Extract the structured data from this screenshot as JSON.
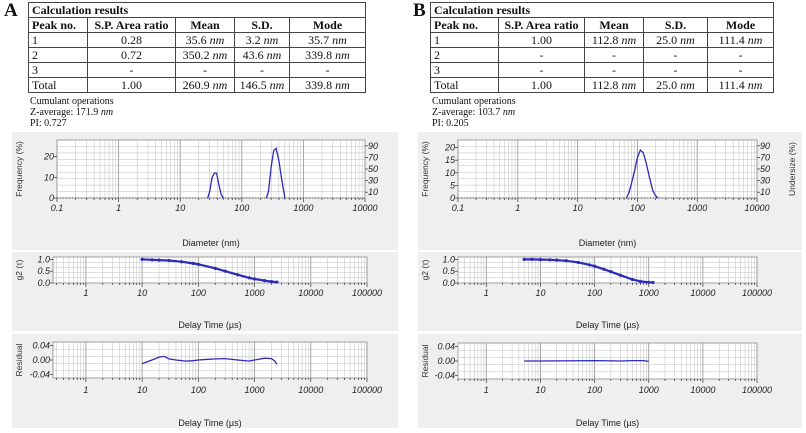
{
  "panels": [
    {
      "letter": "A",
      "table": {
        "caption": "Calculation results",
        "headers": [
          "Peak no.",
          "S.P. Area ratio",
          "Mean",
          "S.D.",
          "Mode"
        ],
        "rows": [
          {
            "peak": "1",
            "ratio": "0.28",
            "mean": "35.6",
            "sd": "3.2",
            "mode": "35.7"
          },
          {
            "peak": "2",
            "ratio": "0.72",
            "mean": "350.2",
            "sd": "43.6",
            "mode": "339.8"
          },
          {
            "peak": "3",
            "ratio": "-",
            "mean": "-",
            "sd": "-",
            "mode": "-"
          },
          {
            "peak": "Total",
            "ratio": "1.00",
            "mean": "260.9",
            "sd": "146.5",
            "mode": "339.8"
          }
        ],
        "unit": "nm"
      },
      "cumulant": {
        "title": "Cumulant operations",
        "z_label": "Z-average: 171.9",
        "pi": "PI: 0.727"
      }
    },
    {
      "letter": "B",
      "table": {
        "caption": "Calculation results",
        "headers": [
          "Peak no.",
          "S.P. Area ratio",
          "Mean",
          "S.D.",
          "Mode"
        ],
        "rows": [
          {
            "peak": "1",
            "ratio": "1.00",
            "mean": "112.8",
            "sd": "25.0",
            "mode": "111.4"
          },
          {
            "peak": "2",
            "ratio": "-",
            "mean": "-",
            "sd": "-",
            "mode": "-"
          },
          {
            "peak": "3",
            "ratio": "-",
            "mean": "-",
            "sd": "-",
            "mode": "-"
          },
          {
            "peak": "Total",
            "ratio": "1.00",
            "mean": "112.8",
            "sd": "25.0",
            "mode": "111.4"
          }
        ],
        "unit": "nm"
      },
      "cumulant": {
        "title": "Cumulant operations",
        "z_label": "Z-average: 103.7",
        "pi": "PI: 0.205"
      }
    }
  ],
  "colors": {
    "line": "#2b2bb8",
    "panel_bg": "#efefef",
    "grid": "#bdbdbd"
  },
  "chart_data": [
    {
      "panel": "A",
      "type": "line",
      "xlabel": "Diameter (nm)",
      "ylabel": "Frequency (%)",
      "y2label": "",
      "xscale": "log",
      "xlim": [
        0.1,
        10000
      ],
      "ylim": [
        0,
        28
      ],
      "xticks": [
        "0.1",
        "1",
        "10",
        "100",
        "1000",
        "10000"
      ],
      "yticks": [
        0,
        10,
        20
      ],
      "y2ticks": [
        10,
        30,
        50,
        70,
        90
      ],
      "grid": true,
      "series": [
        {
          "x": [
            28,
            30,
            33,
            36,
            39,
            42,
            46,
            50
          ],
          "y": [
            0,
            3,
            10,
            12,
            12,
            7,
            2,
            0
          ]
        },
        {
          "x": [
            250,
            270,
            300,
            330,
            360,
            400,
            450,
            500
          ],
          "y": [
            0,
            3,
            15,
            23,
            24,
            18,
            8,
            0
          ]
        }
      ]
    },
    {
      "panel": "A",
      "type": "line",
      "xlabel": "Delay Time (µs)",
      "ylabel": "g2 (τ)",
      "xscale": "log",
      "xlim": [
        0.26,
        100000
      ],
      "ylim": [
        0,
        1.1
      ],
      "xticks": [
        "1",
        "10",
        "100",
        "1000",
        "10000",
        "100000"
      ],
      "yticks": [
        "0.0",
        "0.5",
        "1.0"
      ],
      "grid": true,
      "markers": true,
      "series": [
        {
          "x": [
            10,
            15,
            20,
            30,
            50,
            80,
            100,
            200,
            300,
            500,
            800,
            1000,
            1500,
            2000,
            2500
          ],
          "y": [
            1.0,
            0.98,
            0.97,
            0.95,
            0.9,
            0.83,
            0.79,
            0.62,
            0.5,
            0.35,
            0.22,
            0.17,
            0.1,
            0.06,
            0.04
          ]
        }
      ]
    },
    {
      "panel": "A",
      "type": "line",
      "xlabel": "Delay Time (µs)",
      "ylabel": "Residual",
      "xscale": "log",
      "xlim": [
        0.26,
        100000
      ],
      "ylim": [
        -0.05,
        0.05
      ],
      "xticks": [
        "1",
        "10",
        "100",
        "1000",
        "10000",
        "100000"
      ],
      "yticks": [
        "-0.04",
        "0.00",
        "0.04"
      ],
      "grid": true,
      "series": [
        {
          "x": [
            10,
            15,
            20,
            25,
            30,
            40,
            60,
            80,
            100,
            150,
            200,
            300,
            500,
            800,
            1000,
            1500,
            2000,
            2300,
            2500
          ],
          "y": [
            -0.01,
            0.0,
            0.008,
            0.01,
            0.003,
            0.0,
            -0.003,
            -0.002,
            0.0,
            0.002,
            0.003,
            0.004,
            0.0,
            -0.003,
            0.0,
            0.005,
            0.004,
            -0.003,
            -0.012
          ]
        }
      ]
    },
    {
      "panel": "B",
      "type": "line",
      "xlabel": "Diameter (nm)",
      "ylabel": "Frequency (%)",
      "y2label": "Undersize (%)",
      "xscale": "log",
      "xlim": [
        0.1,
        10000
      ],
      "ylim": [
        0,
        23
      ],
      "xticks": [
        "0.1",
        "1",
        "10",
        "100",
        "1000",
        "10000"
      ],
      "yticks": [
        0,
        5,
        10,
        15,
        20
      ],
      "y2ticks": [
        10,
        30,
        50,
        70,
        90
      ],
      "grid": true,
      "series": [
        {
          "x": [
            65,
            72,
            80,
            90,
            100,
            112,
            125,
            140,
            160,
            180,
            200,
            220
          ],
          "y": [
            0,
            2,
            6,
            11,
            16,
            19,
            18,
            14,
            8,
            3,
            1,
            0
          ]
        }
      ]
    },
    {
      "panel": "B",
      "type": "line",
      "xlabel": "Delay Time (µs)",
      "ylabel": "g2 (τ)",
      "xscale": "log",
      "xlim": [
        0.3,
        100000
      ],
      "ylim": [
        0,
        1.1
      ],
      "xticks": [
        "1",
        "10",
        "100",
        "1000",
        "10000",
        "100000"
      ],
      "yticks": [
        "0.0",
        "0.5",
        "1.0"
      ],
      "grid": true,
      "markers": true,
      "series": [
        {
          "x": [
            5,
            7,
            10,
            15,
            20,
            30,
            50,
            80,
            100,
            150,
            200,
            300,
            500,
            700,
            1000,
            1200
          ],
          "y": [
            1,
            1,
            0.99,
            0.98,
            0.97,
            0.94,
            0.87,
            0.77,
            0.71,
            0.58,
            0.48,
            0.33,
            0.15,
            0.07,
            0.03,
            0.02
          ]
        }
      ]
    },
    {
      "panel": "B",
      "type": "line",
      "xlabel": "Delay Time (µs)",
      "ylabel": "Residual",
      "xscale": "log",
      "xlim": [
        0.3,
        100000
      ],
      "ylim": [
        -0.05,
        0.05
      ],
      "xticks": [
        "1",
        "10",
        "100",
        "1000",
        "10000",
        "100000"
      ],
      "yticks": [
        "-0.04",
        "0.00",
        "0.04"
      ],
      "grid": true,
      "series": [
        {
          "x": [
            5,
            10,
            100,
            300,
            500,
            800,
            1000
          ],
          "y": [
            0,
            0,
            0.001,
            0,
            0.001,
            0.001,
            -0.001
          ]
        }
      ]
    }
  ]
}
